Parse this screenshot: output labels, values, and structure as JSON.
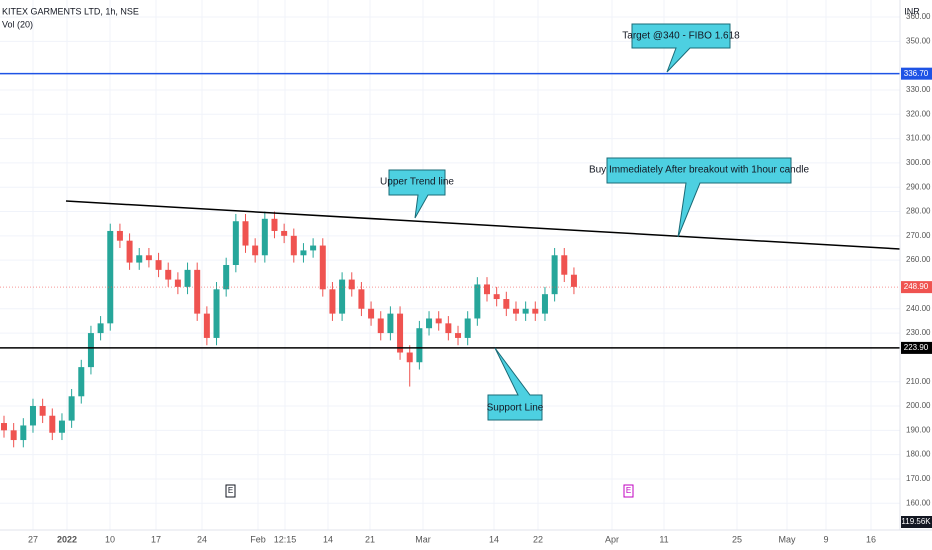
{
  "chart_data": {
    "type": "candlestick",
    "title": "KITEX GARMENTS LTD, 1h, NSE",
    "subtitle": "Vol (20)",
    "currency": "INR",
    "up_color": "#26a69a",
    "down_color": "#ef5350",
    "grid": true,
    "ylim": [
      149,
      367
    ],
    "yticks": [
      {
        "value": 160,
        "label": "160.00"
      },
      {
        "value": 170,
        "label": "170.00"
      },
      {
        "value": 180,
        "label": "180.00"
      },
      {
        "value": 190,
        "label": "190.00"
      },
      {
        "value": 200,
        "label": "200.00"
      },
      {
        "value": 210,
        "label": "210.00"
      },
      {
        "value": 230,
        "label": "230.00"
      },
      {
        "value": 240,
        "label": "240.00"
      },
      {
        "value": 260,
        "label": "260.00"
      },
      {
        "value": 270,
        "label": "270.00"
      },
      {
        "value": 280,
        "label": "280.00"
      },
      {
        "value": 290,
        "label": "290.00"
      },
      {
        "value": 300,
        "label": "300.00"
      },
      {
        "value": 310,
        "label": "310.00"
      },
      {
        "value": 320,
        "label": "320.00"
      },
      {
        "value": 330,
        "label": "330.00"
      },
      {
        "value": 350,
        "label": "350.00"
      },
      {
        "value": 360,
        "label": "360.00"
      }
    ],
    "x_labels": [
      "27",
      "2022",
      "10",
      "17",
      "24",
      "Feb",
      "12:15",
      "14",
      "21",
      "Mar",
      "14",
      "22",
      "Apr",
      "11",
      "25",
      "May",
      "9",
      "16"
    ],
    "open": [
      193,
      190,
      186,
      192,
      200,
      196,
      189,
      194,
      204,
      216,
      230,
      234,
      272,
      268,
      259,
      262,
      260,
      256,
      252,
      249,
      256,
      238,
      228,
      248,
      258,
      276,
      266,
      262,
      277,
      272,
      270,
      262,
      264,
      266,
      248,
      238,
      252,
      248,
      240,
      236,
      230,
      238,
      222,
      218,
      232,
      236,
      234,
      230,
      228,
      236,
      250,
      246,
      244,
      240,
      238,
      240,
      238,
      246,
      262,
      254
    ],
    "high": [
      196,
      193,
      195,
      203,
      203,
      199,
      197,
      207,
      219,
      233,
      237,
      275,
      275,
      271,
      265,
      265,
      263,
      259,
      255,
      259,
      259,
      241,
      251,
      261,
      279,
      279,
      269,
      280,
      280,
      275,
      273,
      267,
      269,
      269,
      251,
      255,
      255,
      251,
      243,
      239,
      241,
      241,
      225,
      235,
      239,
      239,
      237,
      233,
      239,
      253,
      253,
      249,
      247,
      243,
      243,
      243,
      249,
      265,
      265,
      257
    ],
    "low": [
      187,
      183,
      183,
      189,
      193,
      186,
      186,
      191,
      201,
      213,
      227,
      231,
      265,
      256,
      256,
      257,
      253,
      249,
      246,
      246,
      235,
      225,
      225,
      245,
      255,
      263,
      259,
      259,
      269,
      267,
      259,
      259,
      261,
      245,
      235,
      235,
      245,
      237,
      233,
      227,
      227,
      219,
      208,
      215,
      229,
      231,
      227,
      225,
      225,
      233,
      243,
      241,
      237,
      235,
      235,
      235,
      235,
      243,
      251,
      246
    ],
    "close": [
      190,
      186,
      192,
      200,
      196,
      189,
      194,
      204,
      216,
      230,
      234,
      272,
      268,
      259,
      262,
      260,
      256,
      252,
      249,
      256,
      238,
      228,
      248,
      258,
      276,
      266,
      262,
      277,
      272,
      270,
      262,
      264,
      266,
      248,
      238,
      252,
      248,
      240,
      236,
      230,
      238,
      222,
      218,
      232,
      236,
      234,
      230,
      228,
      236,
      250,
      246,
      244,
      240,
      238,
      240,
      238,
      246,
      262,
      254,
      249
    ],
    "levels": [
      {
        "value": 336.7,
        "label": "336.70",
        "color": "#1e53e5"
      },
      {
        "value": 248.9,
        "label": "248.90",
        "color": "#ef5350"
      },
      {
        "value": 223.9,
        "label": "223.90",
        "color": "#000000"
      }
    ],
    "volume_label": "119.56K",
    "earnings_marker": "E",
    "annotations": [
      "Target @340 - FIBO 1.618",
      "Upper Trend line",
      "Buy Immediately After breakout with 1hour candle",
      "Support Line"
    ]
  }
}
